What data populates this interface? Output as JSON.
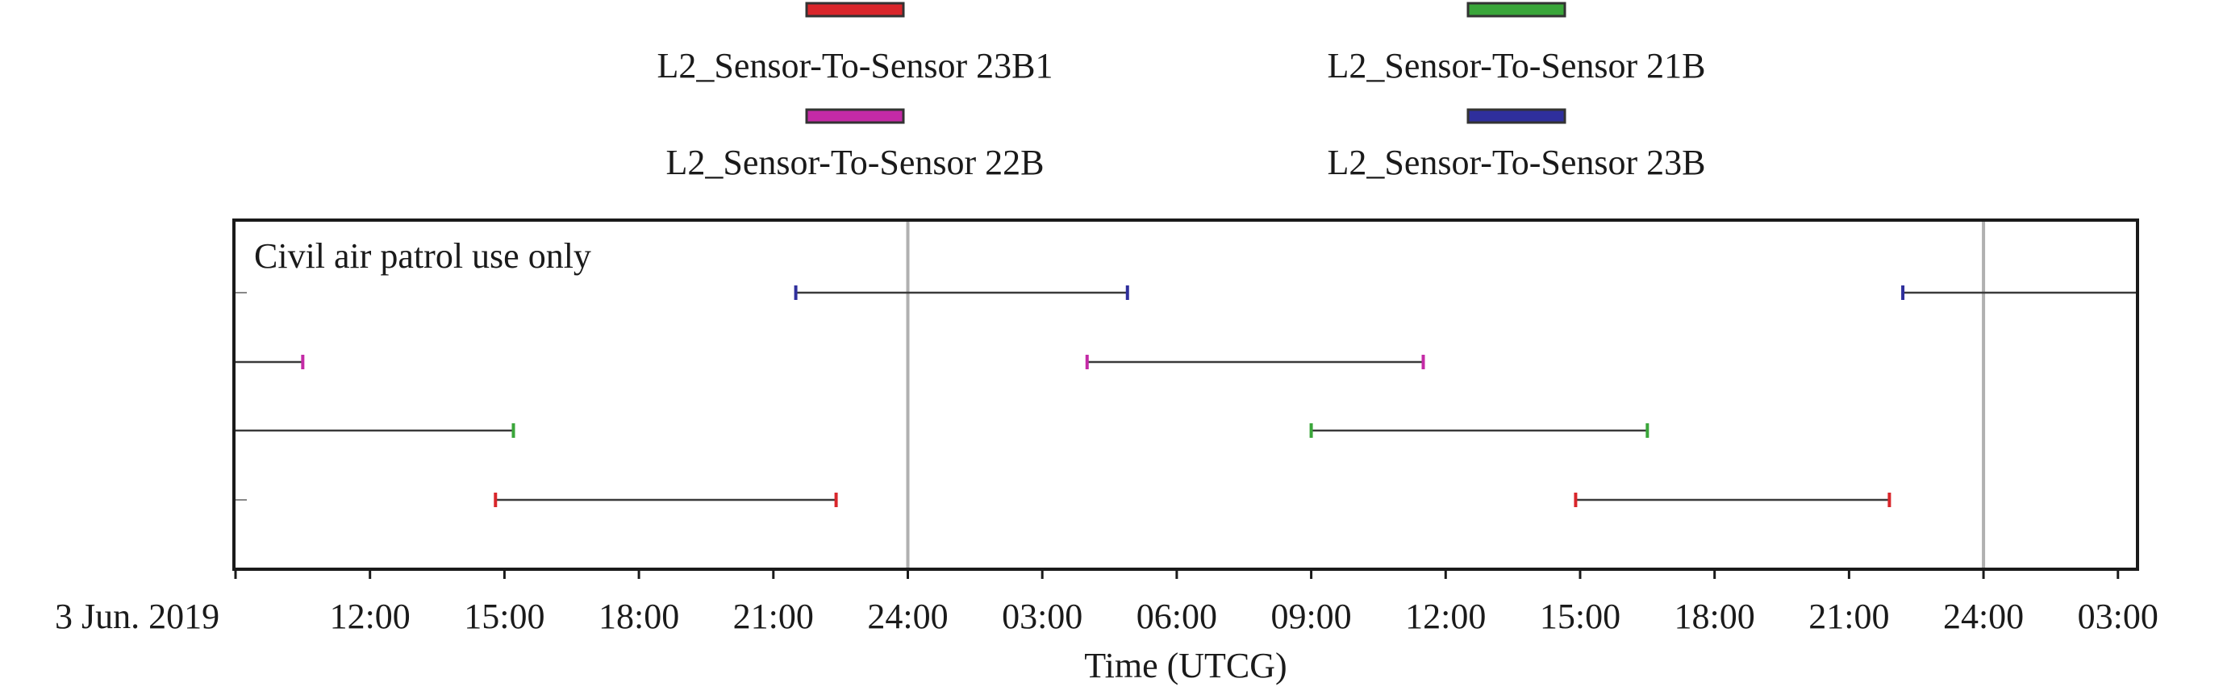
{
  "chart_data": {
    "type": "gantt",
    "plot_note": "Civil air patrol use only",
    "xlabel": "Time (UTCG)",
    "x_tick_labels": [
      "3 Jun. 2019",
      "12:00",
      "15:00",
      "18:00",
      "21:00",
      "24:00",
      "03:00",
      "06:00",
      "09:00",
      "12:00",
      "15:00",
      "18:00",
      "21:00",
      "24:00",
      "03:00"
    ],
    "x_ticks_hours_from_start": [
      0,
      3,
      6,
      9,
      12,
      15,
      18,
      21,
      24,
      27,
      30,
      33,
      36,
      39,
      42
    ],
    "x_start_time": "2019-06-03 09:00",
    "xlim_hours": [
      0,
      42.4
    ],
    "day_boundaries_hours": [
      15,
      39
    ],
    "legend_position": "top",
    "series": [
      {
        "name": "L2_Sensor-To-Sensor 23B1",
        "color": "#d9262b",
        "intervals": [
          [
            5.8,
            13.4
          ],
          [
            29.9,
            36.9
          ]
        ],
        "row": 4
      },
      {
        "name": "L2_Sensor-To-Sensor 21B",
        "color": "#3aa63a",
        "intervals": [
          [
            0.0,
            6.2
          ],
          [
            24.0,
            31.5
          ]
        ],
        "row": 3
      },
      {
        "name": "L2_Sensor-To-Sensor 22B",
        "color": "#c42aa6",
        "intervals": [
          [
            0.0,
            1.5
          ],
          [
            19.0,
            26.5
          ]
        ],
        "row": 2
      },
      {
        "name": "L2_Sensor-To-Sensor 23B",
        "color": "#2f2f9c",
        "intervals": [
          [
            12.5,
            19.9
          ],
          [
            37.2,
            42.4
          ]
        ],
        "row": 1
      }
    ]
  }
}
